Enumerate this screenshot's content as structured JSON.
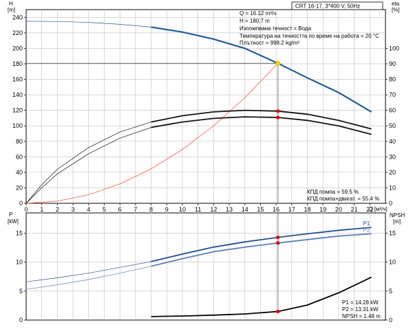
{
  "colors": {
    "qh": "#1f5a9a",
    "eta": "#111111",
    "system": "#ff6a5a",
    "p1": "#1f4d8f",
    "p2": "#5a7fb8",
    "npsh": "#000000",
    "marker_red": "#e60000",
    "marker_yellow": "#ffd700",
    "grid": "#bfbfbf",
    "guide": "#555555"
  },
  "header": {
    "model_box": "CRT 16-17, 3*400 V, 50Hz"
  },
  "info": {
    "lines": [
      "Q = 16.12 m³/ч",
      "H = 180.7 m",
      "Изпомпвана течност = Вода",
      "Температура на течността по време на работа = 20 °C",
      "Плътност = 998.2 kg/m³"
    ]
  },
  "eff_notes": {
    "pump": "КПД помпа = 59.5 %",
    "pump_motor": "КПД помпа+двигат. = 55.4 %"
  },
  "bottom_notes": {
    "p1": "P1 = 14.28 kW",
    "p2": "P2 = 13.31 kW",
    "npsh": "NPSH = 1.48 m"
  },
  "chart_data": [
    {
      "type": "line",
      "title": "",
      "x_label": "Q [м³/ч]",
      "x_ticks": [
        0,
        1,
        2,
        3,
        4,
        5,
        6,
        7,
        8,
        9,
        10,
        11,
        12,
        13,
        14,
        15,
        16,
        17,
        18,
        19,
        20,
        21,
        22
      ],
      "xlim": [
        0,
        23
      ],
      "left_axis": {
        "label": "H",
        "unit": "[m]",
        "ticks": [
          0,
          20,
          40,
          60,
          80,
          100,
          120,
          140,
          160,
          180,
          200,
          220,
          240
        ],
        "ylim": [
          0,
          250
        ]
      },
      "right_axis": {
        "label": "eta",
        "unit": "[%]",
        "ticks": [
          0,
          10,
          20,
          30,
          40,
          50,
          60,
          70,
          80,
          90,
          100
        ],
        "ylim": [
          0,
          125
        ]
      },
      "grid": true,
      "series": [
        {
          "key": "qh",
          "axis": "left",
          "style": "thin",
          "points": [
            [
              0,
              235
            ],
            [
              2,
              234.7
            ],
            [
              4,
              233.5
            ],
            [
              6,
              231
            ],
            [
              8,
              227.5
            ]
          ]
        },
        {
          "key": "qh",
          "axis": "left",
          "style": "thick",
          "points": [
            [
              8,
              227.5
            ],
            [
              10,
              221
            ],
            [
              12,
              212
            ],
            [
              14,
              200
            ],
            [
              16.12,
              180.7
            ],
            [
              18,
              162
            ],
            [
              20,
              143
            ],
            [
              22.1,
              118
            ]
          ]
        },
        {
          "key": "system",
          "axis": "left",
          "style": "thin",
          "points": [
            [
              0,
              0
            ],
            [
              2,
              2.8
            ],
            [
              4,
              11.1
            ],
            [
              6,
              25
            ],
            [
              8,
              44.5
            ],
            [
              10,
              69.5
            ],
            [
              12,
              100
            ],
            [
              14,
              136.3
            ],
            [
              16.12,
              180.7
            ]
          ]
        },
        {
          "key": "eta",
          "axis": "right",
          "style": "thin",
          "points": [
            [
              0,
              0
            ],
            [
              1,
              12
            ],
            [
              2,
              22
            ],
            [
              4,
              36
            ],
            [
              6,
              46
            ],
            [
              8,
              52.5
            ]
          ]
        },
        {
          "key": "eta",
          "axis": "right",
          "style": "thick",
          "points": [
            [
              8,
              52.5
            ],
            [
              10,
              56.5
            ],
            [
              12,
              59
            ],
            [
              14,
              60
            ],
            [
              16.12,
              59.5
            ],
            [
              18,
              57.5
            ],
            [
              20,
              53.5
            ],
            [
              22.1,
              48
            ]
          ]
        },
        {
          "key": "eta",
          "axis": "right",
          "style": "thin",
          "points": [
            [
              0,
              0
            ],
            [
              1,
              10
            ],
            [
              2,
              19
            ],
            [
              4,
              32
            ],
            [
              6,
              42
            ],
            [
              8,
              49
            ]
          ]
        },
        {
          "key": "eta",
          "axis": "right",
          "style": "thick",
          "points": [
            [
              8,
              49
            ],
            [
              10,
              52.5
            ],
            [
              12,
              54.8
            ],
            [
              14,
              55.8
            ],
            [
              16.12,
              55.4
            ],
            [
              18,
              53.5
            ],
            [
              20,
              50
            ],
            [
              22.1,
              44.5
            ]
          ]
        }
      ],
      "duty_point": {
        "q": 16.12,
        "h": 180.7
      },
      "markers": [
        {
          "x": 16.12,
          "y": 59.5,
          "axis": "right"
        },
        {
          "x": 16.12,
          "y": 55.4,
          "axis": "right"
        }
      ]
    },
    {
      "type": "line",
      "title": "",
      "left_axis": {
        "label": "P",
        "unit": "[kW]",
        "ticks": [
          0,
          5,
          10,
          15
        ],
        "ylim": [
          0,
          18.5
        ]
      },
      "right_axis": {
        "label": "NPSH",
        "unit": "[m]",
        "ticks": [
          0,
          5,
          10,
          15
        ],
        "ylim": [
          0,
          18.5
        ]
      },
      "xlim": [
        0,
        23
      ],
      "grid": true,
      "series": [
        {
          "key": "p1",
          "name": "P1",
          "axis": "left",
          "style": "thin",
          "points": [
            [
              0,
              6.6
            ],
            [
              2,
              7.3
            ],
            [
              4,
              8.1
            ],
            [
              6,
              9.1
            ],
            [
              8,
              10.1
            ]
          ]
        },
        {
          "key": "p1",
          "name": "P1",
          "axis": "left",
          "style": "thick",
          "points": [
            [
              8,
              10.1
            ],
            [
              10,
              11.4
            ],
            [
              12,
              12.6
            ],
            [
              14,
              13.5
            ],
            [
              16.12,
              14.28
            ],
            [
              18,
              14.9
            ],
            [
              20,
              15.5
            ],
            [
              22.1,
              16
            ]
          ]
        },
        {
          "key": "p2",
          "name": "P2",
          "axis": "left",
          "style": "thin",
          "points": [
            [
              0,
              5.3
            ],
            [
              2,
              6.1
            ],
            [
              4,
              7
            ],
            [
              6,
              8.1
            ],
            [
              8,
              9.3
            ]
          ]
        },
        {
          "key": "p2",
          "name": "P2",
          "axis": "left",
          "style": "thick",
          "points": [
            [
              8,
              9.3
            ],
            [
              10,
              10.6
            ],
            [
              12,
              11.8
            ],
            [
              14,
              12.6
            ],
            [
              16.12,
              13.31
            ],
            [
              18,
              13.9
            ],
            [
              20,
              14.5
            ],
            [
              22.1,
              14.9
            ]
          ]
        },
        {
          "key": "npsh",
          "axis": "right",
          "style": "thick",
          "points": [
            [
              8,
              0.6
            ],
            [
              10,
              0.7
            ],
            [
              12,
              0.85
            ],
            [
              14,
              1.05
            ],
            [
              16.12,
              1.48
            ],
            [
              18,
              2.6
            ],
            [
              20,
              4.7
            ],
            [
              22.1,
              7.4
            ]
          ]
        }
      ],
      "markers": [
        {
          "x": 16.12,
          "y": 14.28,
          "axis": "left"
        },
        {
          "x": 16.12,
          "y": 13.31,
          "axis": "left"
        },
        {
          "x": 16.12,
          "y": 1.48,
          "axis": "right"
        }
      ]
    }
  ]
}
